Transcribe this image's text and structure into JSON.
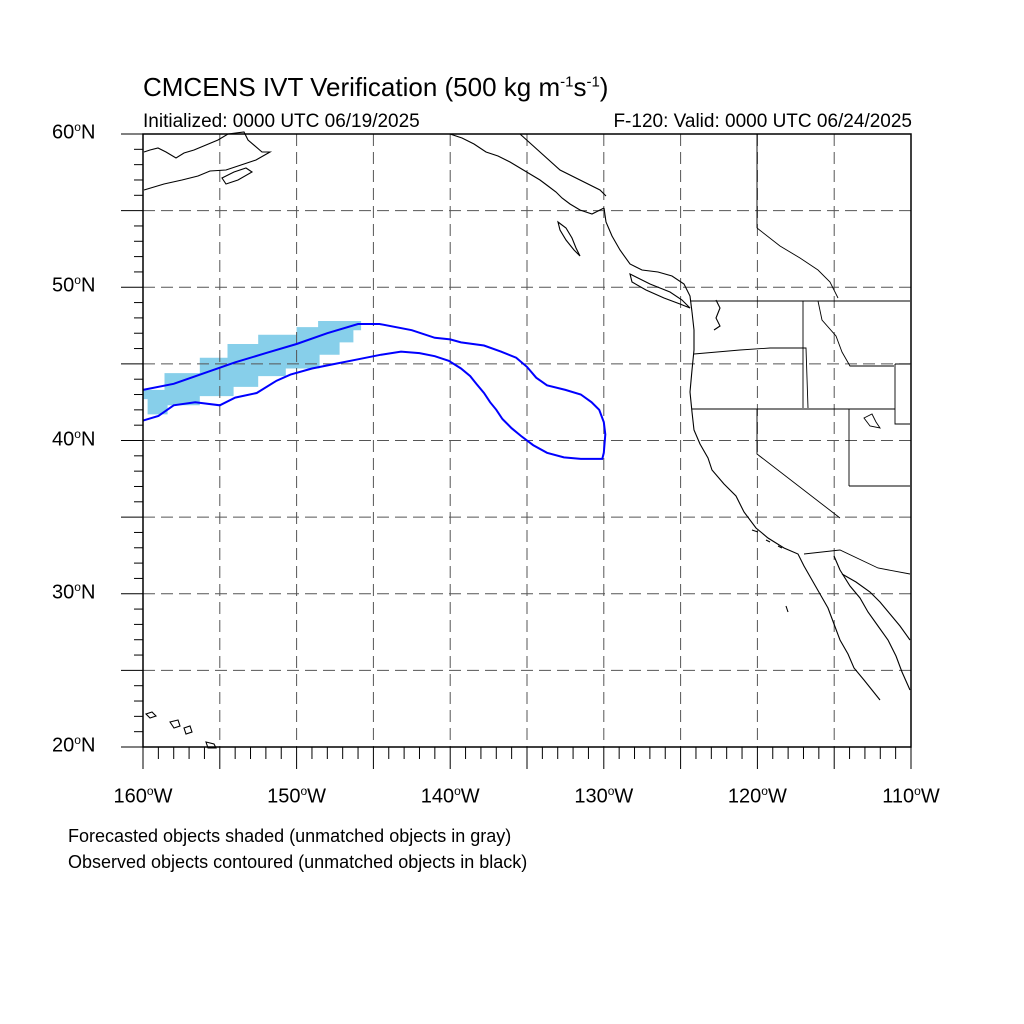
{
  "title": {
    "main": "CMCENS IVT Verification (500 kg m",
    "exp1": "-1",
    "mid": "s",
    "exp2": "-1",
    "close": ")"
  },
  "subtitle_left": "Initialized: 0000 UTC 06/19/2025",
  "subtitle_right": "F-120: Valid: 0000 UTC 06/24/2025",
  "map": {
    "lon_range": [
      -160,
      -110
    ],
    "lat_range": [
      20,
      60
    ],
    "projection": "cylindrical equidistant",
    "grid": "dashed, every 5 degrees",
    "lat_labels": [
      {
        "lat": 60,
        "num": "60",
        "suffix": "N"
      },
      {
        "lat": 50,
        "num": "50",
        "suffix": "N"
      },
      {
        "lat": 40,
        "num": "40",
        "suffix": "N"
      },
      {
        "lat": 30,
        "num": "30",
        "suffix": "N"
      },
      {
        "lat": 20,
        "num": "20",
        "suffix": "N"
      }
    ],
    "lon_labels": [
      {
        "lon": -160,
        "num": "160",
        "suffix": "W"
      },
      {
        "lon": -150,
        "num": "150",
        "suffix": "W"
      },
      {
        "lon": -140,
        "num": "140",
        "suffix": "W"
      },
      {
        "lon": -130,
        "num": "130",
        "suffix": "W"
      },
      {
        "lon": -120,
        "num": "120",
        "suffix": "W"
      },
      {
        "lon": -110,
        "num": "110",
        "suffix": "W"
      }
    ],
    "colors": {
      "forecast_shade": "#87cfea",
      "observed_contour": "#0000ff",
      "coast": "#000000",
      "grid": "#555555"
    },
    "forecast_object": [
      [
        -160,
        42.7
      ],
      [
        -160,
        43.3
      ],
      [
        -158.6,
        43.3
      ],
      [
        -158.6,
        44.4
      ],
      [
        -156.3,
        44.4
      ],
      [
        -156.3,
        45.4
      ],
      [
        -154.5,
        45.4
      ],
      [
        -154.5,
        46.3
      ],
      [
        -152.5,
        46.3
      ],
      [
        -152.5,
        46.9
      ],
      [
        -150,
        46.9
      ],
      [
        -150,
        47.4
      ],
      [
        -148.6,
        47.4
      ],
      [
        -148.6,
        47.8
      ],
      [
        -145.8,
        47.8
      ],
      [
        -145.8,
        47.2
      ],
      [
        -146.3,
        47.2
      ],
      [
        -146.3,
        46.4
      ],
      [
        -147.2,
        46.4
      ],
      [
        -147.2,
        45.6
      ],
      [
        -148.5,
        45.6
      ],
      [
        -148.5,
        44.7
      ],
      [
        -150.7,
        44.7
      ],
      [
        -150.7,
        44.2
      ],
      [
        -152.5,
        44.2
      ],
      [
        -152.5,
        43.5
      ],
      [
        -154.1,
        43.5
      ],
      [
        -154.1,
        42.9
      ],
      [
        -156.3,
        42.9
      ],
      [
        -156.3,
        42.3
      ],
      [
        -158.4,
        42.3
      ],
      [
        -158.4,
        41.7
      ],
      [
        -159.7,
        41.7
      ],
      [
        -159.7,
        42.7
      ]
    ],
    "observed_object": [
      [
        -160,
        43.3
      ],
      [
        -158,
        43.7
      ],
      [
        -156,
        44.4
      ],
      [
        -154,
        45.1
      ],
      [
        -152,
        45.7
      ],
      [
        -150,
        46.3
      ],
      [
        -148,
        47
      ],
      [
        -146,
        47.6
      ],
      [
        -144.6,
        47.6
      ],
      [
        -142.5,
        47.2
      ],
      [
        -141,
        46.7
      ],
      [
        -140,
        46.6
      ],
      [
        -139.3,
        46.4
      ],
      [
        -137.8,
        46.2
      ],
      [
        -136.7,
        45.8
      ],
      [
        -135.7,
        45.4
      ],
      [
        -135,
        44.8
      ],
      [
        -134.4,
        44.1
      ],
      [
        -133.7,
        43.6
      ],
      [
        -132.5,
        43.3
      ],
      [
        -131.5,
        43
      ],
      [
        -130.8,
        42.5
      ],
      [
        -130.3,
        42
      ],
      [
        -130,
        41.2
      ],
      [
        -129.9,
        40.4
      ],
      [
        -130,
        39.2
      ],
      [
        -130.1,
        38.8
      ],
      [
        -131.5,
        38.8
      ],
      [
        -132.6,
        38.9
      ],
      [
        -133.7,
        39.2
      ],
      [
        -134.6,
        39.7
      ],
      [
        -135.4,
        40.3
      ],
      [
        -136,
        40.8
      ],
      [
        -136.6,
        41.4
      ],
      [
        -137,
        42
      ],
      [
        -137.4,
        42.5
      ],
      [
        -137.8,
        43.1
      ],
      [
        -138.3,
        43.7
      ],
      [
        -138.7,
        44.2
      ],
      [
        -139.3,
        44.7
      ],
      [
        -140.1,
        45.2
      ],
      [
        -141,
        45.5
      ],
      [
        -142,
        45.7
      ],
      [
        -143.2,
        45.8
      ],
      [
        -144.5,
        45.6
      ],
      [
        -146,
        45.3
      ],
      [
        -147.5,
        45
      ],
      [
        -149,
        44.7
      ],
      [
        -150.4,
        44.3
      ],
      [
        -151.3,
        43.9
      ],
      [
        -152.6,
        43.1
      ],
      [
        -154,
        42.8
      ],
      [
        -155,
        42.3
      ],
      [
        -156.6,
        42.5
      ],
      [
        -158,
        42.3
      ],
      [
        -159,
        41.6
      ],
      [
        -160,
        41.3
      ]
    ]
  },
  "notes": [
    "Forecasted objects shaded (unmatched objects in gray)",
    "Observed objects contoured (unmatched objects in black)"
  ]
}
